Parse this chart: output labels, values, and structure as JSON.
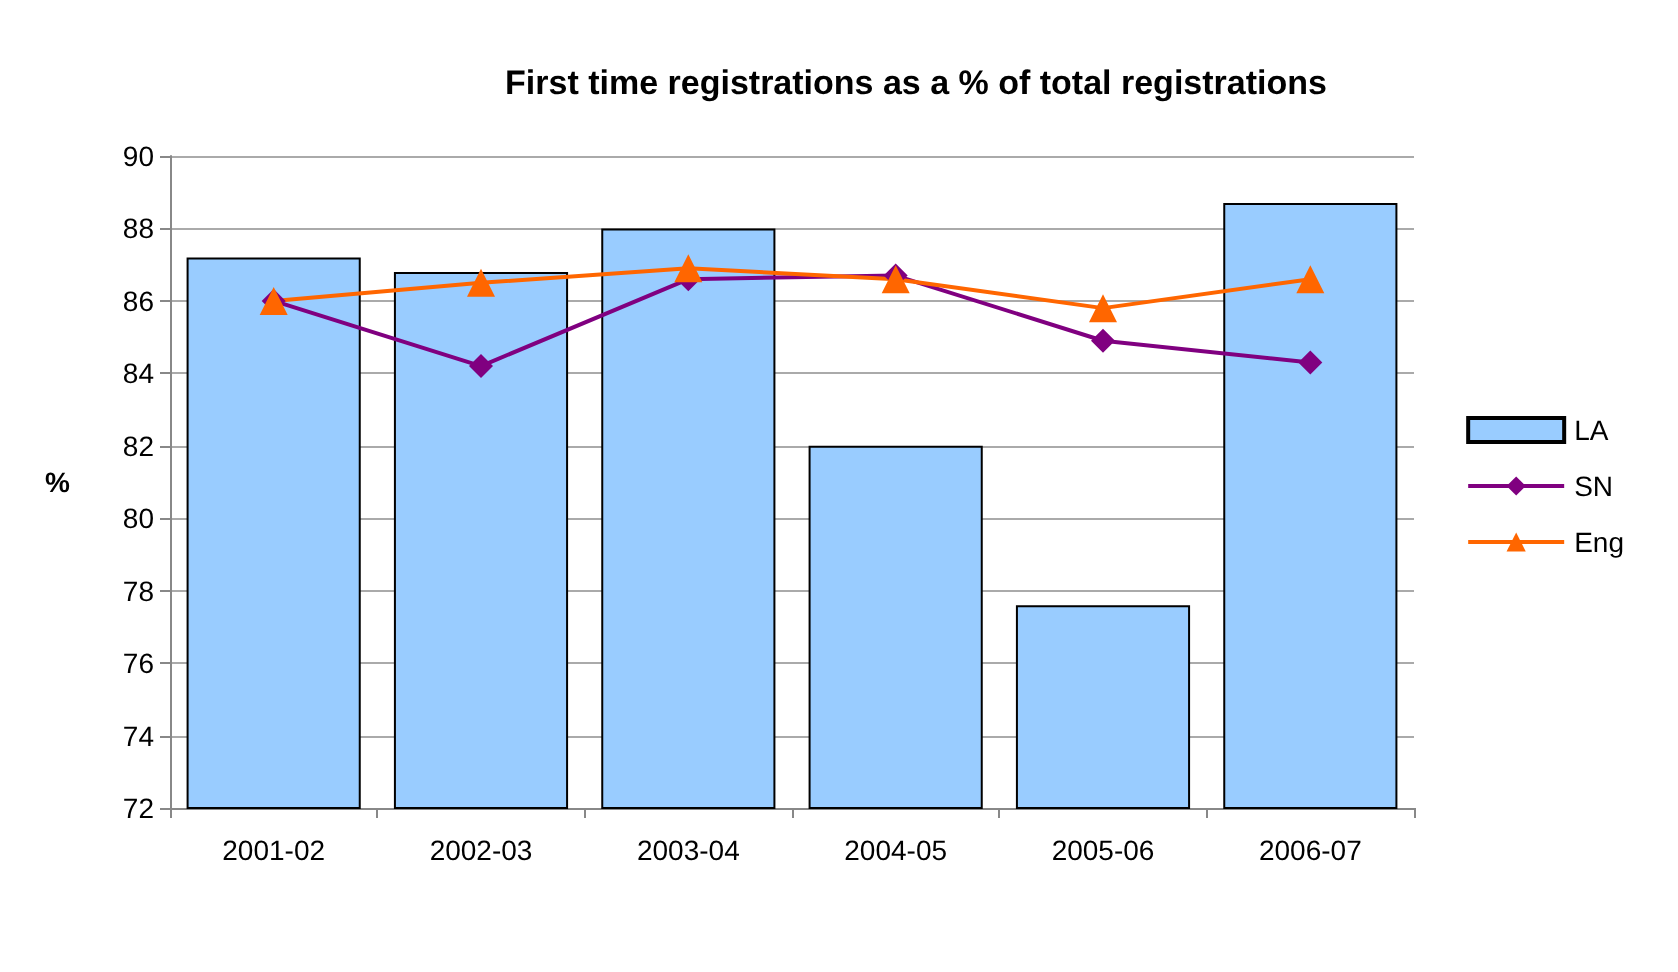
{
  "chart_data": {
    "type": "bar",
    "title": "First time registrations as a % of total registrations",
    "ylabel": "%",
    "categories": [
      "2001-02",
      "2002-03",
      "2003-04",
      "2004-05",
      "2005-06",
      "2006-07"
    ],
    "series": [
      {
        "name": "LA",
        "color": "#99ccff",
        "values": [
          87.2,
          86.8,
          88.0,
          82.0,
          77.6,
          88.7
        ]
      },
      {
        "name": "SN",
        "type": "line",
        "color": "#800080",
        "marker": "diamond",
        "values": [
          86.0,
          84.2,
          86.6,
          86.7,
          84.9,
          84.3
        ]
      },
      {
        "name": "Eng",
        "type": "line",
        "color": "#ff6600",
        "marker": "triangle",
        "values": [
          86.0,
          86.5,
          86.9,
          86.6,
          85.8,
          86.6
        ]
      }
    ],
    "ylim": [
      72,
      90
    ],
    "yticks": [
      72,
      74,
      76,
      78,
      80,
      82,
      84,
      86,
      88,
      90
    ],
    "grid": "y",
    "legend": "right"
  }
}
